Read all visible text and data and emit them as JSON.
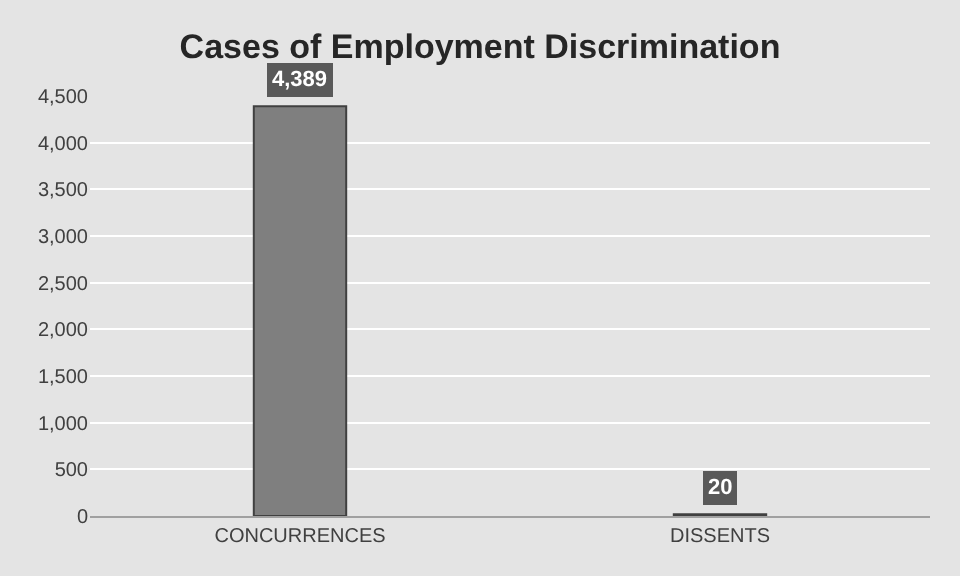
{
  "chart_data": {
    "type": "bar",
    "title": "Cases of Employment Discrimination",
    "categories": [
      "CONCURRENCES",
      "DISSENTS"
    ],
    "values": [
      4389,
      20
    ],
    "color": "#7f7f7f",
    "ylim": [
      0,
      4500
    ],
    "yticks": [
      {
        "value": 0,
        "label": "0"
      },
      {
        "value": 500,
        "label": "500"
      },
      {
        "value": 1000,
        "label": "1,000"
      },
      {
        "value": 1500,
        "label": "1,500"
      },
      {
        "value": 2000,
        "label": "2,000"
      },
      {
        "value": 2500,
        "label": "2,500"
      },
      {
        "value": 3000,
        "label": "3,000"
      },
      {
        "value": 3500,
        "label": "3,500"
      },
      {
        "value": 4000,
        "label": "4,000"
      },
      {
        "value": 4500,
        "label": "4,500"
      }
    ],
    "grid": "y",
    "data_labels": true,
    "value_labels": [
      "4,389",
      "20"
    ]
  }
}
